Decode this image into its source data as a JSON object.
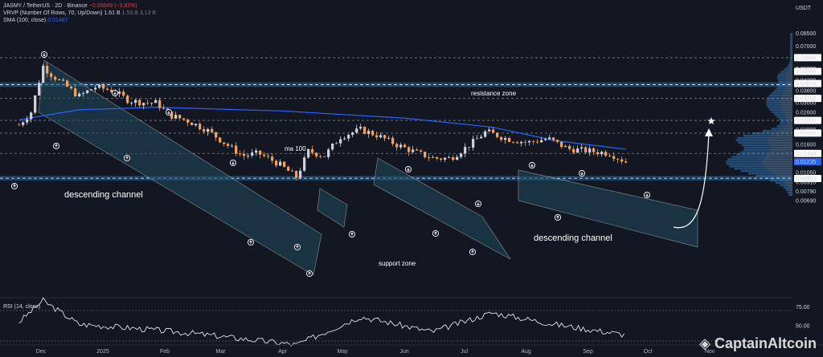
{
  "legend": {
    "symbol": "JASMY / TetherUS · 2D · Binance",
    "change": "−0.00049 (−3.82%)",
    "vrvp": "VRVP (Number Of Rows, 70, Up/Down)",
    "vrvp_vals": [
      "1.61 B",
      "1.53 B",
      "3.13 B"
    ],
    "sma": "SMA (100, close)",
    "sma_val": "0.01487",
    "rsi": "RSI (14, close)"
  },
  "axis": {
    "currency": "USDT",
    "price_ticks": [
      "0.08500",
      "0.07000",
      "0.05900",
      "0.05000",
      "0.04800",
      "0.04200",
      "0.04000",
      "0.03600",
      "0.03200",
      "0.03000",
      "0.02600",
      "0.02300",
      "0.02000",
      "0.01900",
      "0.01600",
      "0.01400",
      "0.01235",
      "0.01050",
      "0.00960",
      "0.00910",
      "0.00790",
      "0.00690"
    ],
    "rsi_ticks": [
      "75.00",
      "50.00"
    ],
    "time_ticks": [
      "Dec",
      "2025",
      "Feb",
      "Mar",
      "Apr",
      "May",
      "Jun",
      "Jul",
      "Aug",
      "Sep",
      "Oct",
      "Nov"
    ]
  },
  "annotations": {
    "resistance": "resistance zone",
    "support": "support zone",
    "ma": "ma 100",
    "channel_left": "descending channel",
    "channel_right": "descending channel"
  },
  "watermark": "CaptainAltcoin",
  "colors": {
    "up": "#d1d4dc",
    "down": "#f7a35c",
    "sma": "#2962ff",
    "zone": "#1f5a8a",
    "channel": "#1e4a5e",
    "background": "#131722"
  },
  "chart_data": {
    "type": "candlestick",
    "timeframe": "2D",
    "y_scale": "log",
    "current_price": 0.01235,
    "sma_100_last": 0.01487,
    "resistance_zone": [
      0.0383,
      0.0405
    ],
    "support_zone": [
      0.0094,
      0.0099
    ],
    "close_path": [
      {
        "x": "2024-11-20",
        "close": 0.0215
      },
      {
        "x": "2024-11-26",
        "close": 0.026
      },
      {
        "x": "2024-12-02",
        "close": 0.052
      },
      {
        "x": "2024-12-06",
        "close": 0.046
      },
      {
        "x": "2024-12-12",
        "close": 0.04
      },
      {
        "x": "2024-12-20",
        "close": 0.033
      },
      {
        "x": "2024-12-28",
        "close": 0.038
      },
      {
        "x": "2025-01-06",
        "close": 0.036
      },
      {
        "x": "2025-01-14",
        "close": 0.031
      },
      {
        "x": "2025-01-22",
        "close": 0.03
      },
      {
        "x": "2025-01-28",
        "close": 0.03
      },
      {
        "x": "2025-02-03",
        "close": 0.025
      },
      {
        "x": "2025-02-12",
        "close": 0.023
      },
      {
        "x": "2025-02-22",
        "close": 0.02
      },
      {
        "x": "2025-03-04",
        "close": 0.016
      },
      {
        "x": "2025-03-12",
        "close": 0.0135
      },
      {
        "x": "2025-03-20",
        "close": 0.014
      },
      {
        "x": "2025-03-30",
        "close": 0.012
      },
      {
        "x": "2025-04-08",
        "close": 0.0098
      },
      {
        "x": "2025-04-14",
        "close": 0.0145
      },
      {
        "x": "2025-04-22",
        "close": 0.0135
      },
      {
        "x": "2025-04-30",
        "close": 0.018
      },
      {
        "x": "2025-05-10",
        "close": 0.02
      },
      {
        "x": "2025-05-18",
        "close": 0.0185
      },
      {
        "x": "2025-05-28",
        "close": 0.016
      },
      {
        "x": "2025-06-08",
        "close": 0.014
      },
      {
        "x": "2025-06-16",
        "close": 0.013
      },
      {
        "x": "2025-06-24",
        "close": 0.013
      },
      {
        "x": "2025-07-04",
        "close": 0.016
      },
      {
        "x": "2025-07-12",
        "close": 0.0195
      },
      {
        "x": "2025-07-22",
        "close": 0.0175
      },
      {
        "x": "2025-08-02",
        "close": 0.0165
      },
      {
        "x": "2025-08-12",
        "close": 0.0175
      },
      {
        "x": "2025-08-22",
        "close": 0.015
      },
      {
        "x": "2025-09-02",
        "close": 0.0145
      },
      {
        "x": "2025-09-12",
        "close": 0.014
      },
      {
        "x": "2025-09-20",
        "close": 0.0123
      }
    ],
    "sma_path": [
      {
        "x": "2024-11-20",
        "value": 0.0232
      },
      {
        "x": "2024-12-20",
        "value": 0.027
      },
      {
        "x": "2025-01-28",
        "value": 0.028
      },
      {
        "x": "2025-04-01",
        "value": 0.0265
      },
      {
        "x": "2025-06-01",
        "value": 0.0238
      },
      {
        "x": "2025-07-15",
        "value": 0.0208
      },
      {
        "x": "2025-08-15",
        "value": 0.017
      },
      {
        "x": "2025-09-20",
        "value": 0.0149
      }
    ],
    "rsi_path": [
      {
        "x": "2024-11-20",
        "value": 55
      },
      {
        "x": "2024-12-02",
        "value": 83
      },
      {
        "x": "2024-12-20",
        "value": 52
      },
      {
        "x": "2025-01-15",
        "value": 47
      },
      {
        "x": "2025-02-15",
        "value": 40
      },
      {
        "x": "2025-03-15",
        "value": 32
      },
      {
        "x": "2025-04-08",
        "value": 25
      },
      {
        "x": "2025-05-10",
        "value": 62
      },
      {
        "x": "2025-06-15",
        "value": 42
      },
      {
        "x": "2025-07-15",
        "value": 67
      },
      {
        "x": "2025-08-15",
        "value": 52
      },
      {
        "x": "2025-09-20",
        "value": 38
      }
    ],
    "annotations": [
      "resistance zone",
      "support zone",
      "ma 100",
      "descending channel",
      "descending channel"
    ]
  }
}
